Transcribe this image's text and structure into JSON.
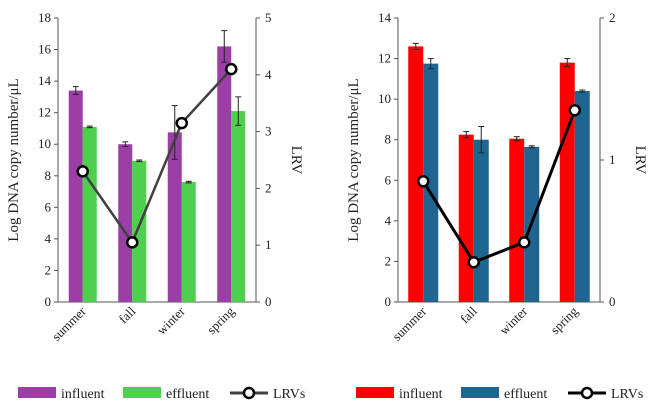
{
  "chart_data": [
    {
      "type": "bar",
      "categories": [
        "summer",
        "fall",
        "winter",
        "spring"
      ],
      "ylabel": "Log DNA copy number/μL",
      "y2label": "LRV",
      "ylim": [
        0,
        18
      ],
      "yticks": [
        0,
        2,
        4,
        6,
        8,
        10,
        12,
        14,
        16,
        18
      ],
      "y2lim": [
        0,
        5
      ],
      "y2ticks": [
        0,
        1,
        2,
        3,
        4,
        5
      ],
      "series": [
        {
          "name": "influent",
          "kind": "bar",
          "axis": "left",
          "color": "#9b3fa6",
          "values": [
            13.4,
            10.0,
            10.75,
            16.2
          ],
          "errors": [
            0.25,
            0.15,
            1.7,
            1.0
          ]
        },
        {
          "name": "effluent",
          "kind": "bar",
          "axis": "left",
          "color": "#4ed04e",
          "values": [
            11.1,
            8.95,
            7.6,
            12.1
          ],
          "errors": [
            0.05,
            0.05,
            0.05,
            0.9
          ]
        },
        {
          "name": "LRVs",
          "kind": "line",
          "axis": "right",
          "color": "#404040",
          "values": [
            2.3,
            1.05,
            3.15,
            4.1
          ]
        }
      ],
      "legend": "bottom"
    },
    {
      "type": "bar",
      "categories": [
        "summer",
        "fall",
        "winter",
        "spring"
      ],
      "ylabel": "Log DNA copy number/μL",
      "y2label": "LRV",
      "ylim": [
        0,
        14
      ],
      "yticks": [
        0,
        2,
        4,
        6,
        8,
        10,
        12,
        14
      ],
      "y2lim": [
        0,
        2
      ],
      "y2ticks": [
        0,
        1,
        2
      ],
      "series": [
        {
          "name": "influent",
          "kind": "bar",
          "axis": "left",
          "color": "#ff0000",
          "values": [
            12.6,
            8.25,
            8.05,
            11.8
          ],
          "errors": [
            0.15,
            0.15,
            0.1,
            0.2
          ]
        },
        {
          "name": "effluent",
          "kind": "bar",
          "axis": "left",
          "color": "#1f6591",
          "values": [
            11.75,
            8.0,
            7.65,
            10.4
          ],
          "errors": [
            0.25,
            0.65,
            0.05,
            0.05
          ]
        },
        {
          "name": "LRVs",
          "kind": "line",
          "axis": "right",
          "color": "#000000",
          "values": [
            0.85,
            0.28,
            0.42,
            1.35
          ]
        }
      ],
      "legend": "bottom"
    }
  ]
}
